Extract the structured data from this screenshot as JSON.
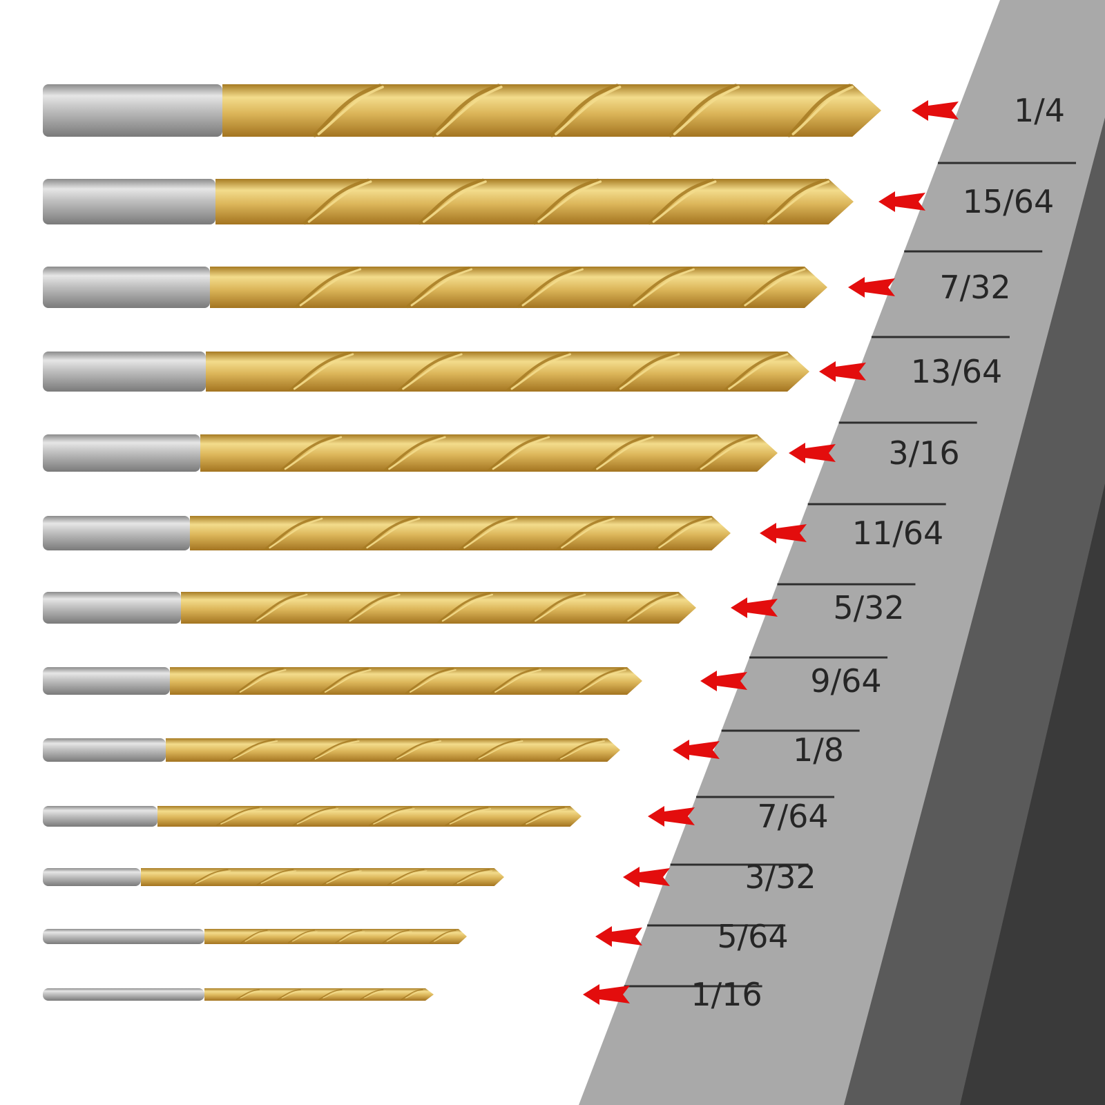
{
  "product": "drill-bit-set",
  "colors": {
    "background": "#ffffff",
    "panel_light": "#a9a9a9",
    "panel_mid": "#5a5a5a",
    "panel_dark": "#3a3a3a",
    "divider": "#2e2e2e",
    "label_text": "#262626",
    "shank": "#b8b8b8",
    "shank_highlight": "#e8e8e8",
    "shank_shadow": "#7e7e7e",
    "bit_gold": "#d9b24f",
    "bit_gold_light": "#f3dc8c",
    "bit_gold_dark": "#a67a22",
    "arrow_red": "#e30d0d"
  },
  "bits": [
    {
      "size": "1/4"
    },
    {
      "size": "15/64"
    },
    {
      "size": "7/32"
    },
    {
      "size": "13/64"
    },
    {
      "size": "3/16"
    },
    {
      "size": "11/64"
    },
    {
      "size": "5/32"
    },
    {
      "size": "9/64"
    },
    {
      "size": "1/8"
    },
    {
      "size": "7/64"
    },
    {
      "size": "3/32"
    },
    {
      "size": "5/64"
    },
    {
      "size": "1/16"
    }
  ],
  "arrow_icon": "left-arrow-icon"
}
